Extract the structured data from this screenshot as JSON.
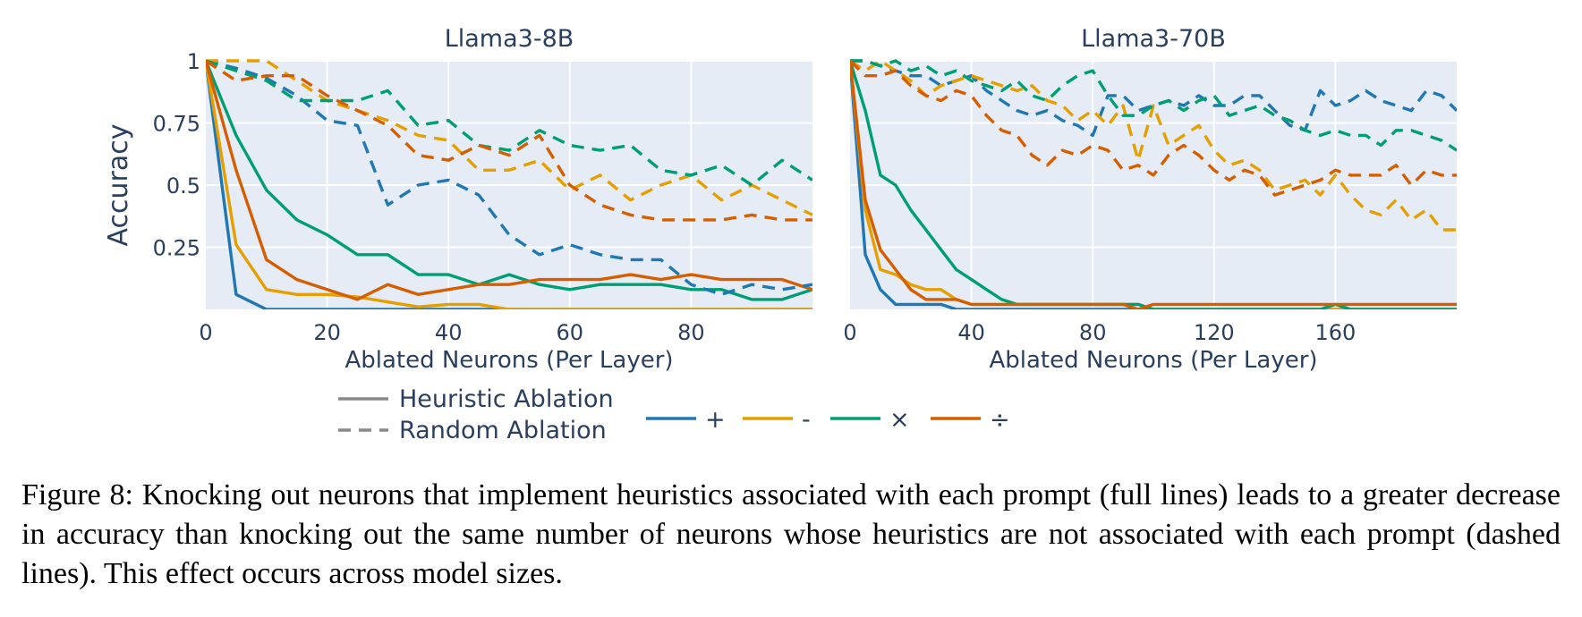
{
  "legend": {
    "styles": [
      {
        "label": "Heuristic Ablation",
        "dash": "solid"
      },
      {
        "label": "Random Ablation",
        "dash": "dashed"
      }
    ],
    "ops": [
      {
        "label": "+",
        "color": "#1f77b4"
      },
      {
        "label": "-",
        "color": "#e69f00"
      },
      {
        "label": "×",
        "color": "#009e73"
      },
      {
        "label": "÷",
        "color": "#d55e00"
      }
    ]
  },
  "caption": "Figure 8: Knocking out neurons that implement heuristics associated with each prompt (full lines) leads to a greater decrease in accuracy than knocking out the same number of neurons whose heuristics are not associated with each prompt (dashed lines). This effect occurs across model sizes.",
  "chart_data": [
    {
      "type": "line",
      "title": "Llama3-8B",
      "xlabel": "Ablated Neurons (Per Layer)",
      "ylabel": "Accuracy",
      "xlim": [
        0,
        100
      ],
      "ylim": [
        0,
        1
      ],
      "xticks": [
        0,
        20,
        40,
        60,
        80
      ],
      "yticks": [
        0.25,
        0.5,
        0.75,
        1
      ],
      "ytick_labels": [
        "0.25",
        "0.5",
        "0.75",
        "1"
      ],
      "x": [
        0,
        5,
        10,
        15,
        20,
        25,
        30,
        35,
        40,
        45,
        50,
        55,
        60,
        65,
        70,
        75,
        80,
        85,
        90,
        95,
        100
      ],
      "series": [
        {
          "op": "+",
          "ablation": "Heuristic Ablation",
          "color": "#1f77b4",
          "dash": "solid",
          "values": [
            1,
            0.06,
            0.0,
            0.0,
            0.0,
            0.0,
            0.0,
            0.0,
            0.0,
            0.0,
            0.0,
            0.0,
            0.0,
            0.0,
            0.0,
            0.0,
            0.0,
            0.0,
            0.0,
            0.0,
            0.0
          ]
        },
        {
          "op": "-",
          "ablation": "Heuristic Ablation",
          "color": "#e69f00",
          "dash": "solid",
          "values": [
            1,
            0.26,
            0.08,
            0.06,
            0.06,
            0.05,
            0.03,
            0.01,
            0.02,
            0.02,
            0.0,
            0.0,
            0.0,
            0.0,
            0.0,
            0.0,
            0.0,
            0.0,
            0.0,
            0.0,
            0.0
          ]
        },
        {
          "op": "×",
          "ablation": "Heuristic Ablation",
          "color": "#009e73",
          "dash": "solid",
          "values": [
            1,
            0.7,
            0.48,
            0.36,
            0.3,
            0.22,
            0.22,
            0.14,
            0.14,
            0.1,
            0.14,
            0.1,
            0.08,
            0.1,
            0.1,
            0.1,
            0.08,
            0.08,
            0.04,
            0.04,
            0.08
          ]
        },
        {
          "op": "÷",
          "ablation": "Heuristic Ablation",
          "color": "#d55e00",
          "dash": "solid",
          "values": [
            1,
            0.56,
            0.2,
            0.12,
            0.08,
            0.04,
            0.1,
            0.06,
            0.08,
            0.1,
            0.1,
            0.12,
            0.12,
            0.12,
            0.14,
            0.12,
            0.14,
            0.12,
            0.12,
            0.12,
            0.08
          ]
        },
        {
          "op": "+",
          "ablation": "Random Ablation",
          "color": "#1f77b4",
          "dash": "dashed",
          "values": [
            1,
            0.97,
            0.93,
            0.86,
            0.76,
            0.74,
            0.42,
            0.5,
            0.52,
            0.46,
            0.3,
            0.22,
            0.26,
            0.22,
            0.2,
            0.2,
            0.1,
            0.06,
            0.1,
            0.08,
            0.1
          ]
        },
        {
          "op": "-",
          "ablation": "Random Ablation",
          "color": "#e69f00",
          "dash": "dashed",
          "values": [
            1,
            1,
            1,
            0.92,
            0.84,
            0.8,
            0.76,
            0.7,
            0.68,
            0.56,
            0.56,
            0.6,
            0.48,
            0.54,
            0.44,
            0.5,
            0.54,
            0.44,
            0.5,
            0.44,
            0.38
          ]
        },
        {
          "op": "×",
          "ablation": "Random Ablation",
          "color": "#009e73",
          "dash": "dashed",
          "values": [
            1,
            0.96,
            0.92,
            0.84,
            0.84,
            0.84,
            0.88,
            0.74,
            0.76,
            0.66,
            0.64,
            0.72,
            0.66,
            0.64,
            0.66,
            0.56,
            0.54,
            0.58,
            0.5,
            0.6,
            0.52
          ]
        },
        {
          "op": "÷",
          "ablation": "Random Ablation",
          "color": "#d55e00",
          "dash": "dashed",
          "values": [
            1,
            0.92,
            0.94,
            0.94,
            0.86,
            0.8,
            0.74,
            0.62,
            0.6,
            0.66,
            0.62,
            0.7,
            0.5,
            0.42,
            0.38,
            0.36,
            0.36,
            0.36,
            0.38,
            0.36,
            0.36
          ]
        }
      ]
    },
    {
      "type": "line",
      "title": "Llama3-70B",
      "xlabel": "Ablated Neurons (Per Layer)",
      "ylabel": "",
      "xlim": [
        0,
        200
      ],
      "ylim": [
        0,
        1
      ],
      "xticks": [
        0,
        40,
        80,
        120,
        160
      ],
      "yticks": [],
      "ytick_labels": [],
      "x": [
        0,
        5,
        10,
        15,
        20,
        25,
        30,
        35,
        40,
        45,
        50,
        55,
        60,
        65,
        70,
        75,
        80,
        85,
        90,
        95,
        100,
        105,
        110,
        115,
        120,
        125,
        130,
        135,
        140,
        145,
        150,
        155,
        160,
        165,
        170,
        175,
        180,
        185,
        190,
        195,
        200
      ],
      "series": [
        {
          "op": "+",
          "ablation": "Heuristic Ablation",
          "color": "#1f77b4",
          "dash": "solid",
          "values": [
            1,
            0.22,
            0.08,
            0.02,
            0.02,
            0.02,
            0.02,
            0.0,
            0.0,
            0.0,
            0.0,
            0.0,
            0.0,
            0.0,
            0.0,
            0.0,
            0.0,
            0.0,
            0.0,
            0.0,
            0.0,
            0.0,
            0.0,
            0.0,
            0.0,
            0.0,
            0.0,
            0.0,
            0.0,
            0.0,
            0.0,
            0.0,
            0.0,
            0.0,
            0.0,
            0.0,
            0.0,
            0.0,
            0.0,
            0.0,
            0.0
          ]
        },
        {
          "op": "-",
          "ablation": "Heuristic Ablation",
          "color": "#e69f00",
          "dash": "solid",
          "values": [
            1,
            0.4,
            0.16,
            0.14,
            0.1,
            0.08,
            0.08,
            0.04,
            0.02,
            0.02,
            0.02,
            0.02,
            0.02,
            0.02,
            0.02,
            0.02,
            0.02,
            0.02,
            0.02,
            0.02,
            0.0,
            0.0,
            0.0,
            0.0,
            0.0,
            0.0,
            0.0,
            0.0,
            0.0,
            0.0,
            0.0,
            0.0,
            0.0,
            0.0,
            0.0,
            0.0,
            0.0,
            0.0,
            0.0,
            0.0,
            0.0
          ]
        },
        {
          "op": "×",
          "ablation": "Heuristic Ablation",
          "color": "#009e73",
          "dash": "solid",
          "values": [
            1,
            0.8,
            0.54,
            0.5,
            0.4,
            0.32,
            0.24,
            0.16,
            0.12,
            0.08,
            0.04,
            0.02,
            0.02,
            0.02,
            0.02,
            0.02,
            0.02,
            0.02,
            0.02,
            0.02,
            0.0,
            0.0,
            0.0,
            0.0,
            0.0,
            0.0,
            0.0,
            0.0,
            0.0,
            0.0,
            0.0,
            0.0,
            0.02,
            0.0,
            0.0,
            0.0,
            0.0,
            0.0,
            0.0,
            0.0,
            0.0
          ]
        },
        {
          "op": "÷",
          "ablation": "Heuristic Ablation",
          "color": "#d55e00",
          "dash": "solid",
          "values": [
            1,
            0.44,
            0.24,
            0.16,
            0.08,
            0.04,
            0.04,
            0.04,
            0.02,
            0.02,
            0.02,
            0.02,
            0.02,
            0.02,
            0.02,
            0.02,
            0.02,
            0.02,
            0.02,
            0.0,
            0.02,
            0.02,
            0.02,
            0.02,
            0.02,
            0.02,
            0.02,
            0.02,
            0.02,
            0.02,
            0.02,
            0.02,
            0.02,
            0.02,
            0.02,
            0.02,
            0.02,
            0.02,
            0.02,
            0.02,
            0.02
          ]
        },
        {
          "op": "+",
          "ablation": "Random Ablation",
          "color": "#1f77b4",
          "dash": "dashed",
          "values": [
            1,
            1,
            0.98,
            0.96,
            0.94,
            0.94,
            0.9,
            0.92,
            0.94,
            0.88,
            0.84,
            0.8,
            0.78,
            0.8,
            0.76,
            0.74,
            0.7,
            0.86,
            0.86,
            0.8,
            0.82,
            0.84,
            0.82,
            0.86,
            0.82,
            0.82,
            0.86,
            0.86,
            0.8,
            0.74,
            0.72,
            0.88,
            0.82,
            0.84,
            0.88,
            0.84,
            0.82,
            0.8,
            0.88,
            0.86,
            0.8
          ]
        },
        {
          "op": "-",
          "ablation": "Random Ablation",
          "color": "#e69f00",
          "dash": "dashed",
          "values": [
            1,
            0.96,
            1.0,
            0.96,
            0.92,
            0.86,
            0.9,
            0.92,
            0.94,
            0.92,
            0.9,
            0.88,
            0.9,
            0.84,
            0.82,
            0.76,
            0.8,
            0.74,
            0.82,
            0.6,
            0.82,
            0.66,
            0.7,
            0.74,
            0.64,
            0.58,
            0.6,
            0.56,
            0.48,
            0.5,
            0.52,
            0.46,
            0.54,
            0.46,
            0.4,
            0.38,
            0.44,
            0.36,
            0.4,
            0.32,
            0.32
          ]
        },
        {
          "op": "×",
          "ablation": "Random Ablation",
          "color": "#009e73",
          "dash": "dashed",
          "values": [
            1,
            1,
            0.98,
            1.0,
            0.96,
            0.98,
            0.94,
            0.96,
            0.92,
            0.9,
            0.88,
            0.92,
            0.86,
            0.84,
            0.9,
            0.94,
            0.96,
            0.86,
            0.78,
            0.78,
            0.82,
            0.84,
            0.8,
            0.84,
            0.86,
            0.78,
            0.8,
            0.82,
            0.78,
            0.76,
            0.72,
            0.7,
            0.72,
            0.7,
            0.7,
            0.66,
            0.72,
            0.72,
            0.7,
            0.68,
            0.64
          ]
        },
        {
          "op": "÷",
          "ablation": "Random Ablation",
          "color": "#d55e00",
          "dash": "dashed",
          "values": [
            1,
            0.94,
            0.94,
            0.96,
            0.9,
            0.86,
            0.84,
            0.88,
            0.86,
            0.78,
            0.72,
            0.7,
            0.62,
            0.58,
            0.64,
            0.62,
            0.66,
            0.64,
            0.56,
            0.58,
            0.54,
            0.62,
            0.66,
            0.62,
            0.56,
            0.52,
            0.56,
            0.54,
            0.46,
            0.48,
            0.5,
            0.52,
            0.56,
            0.54,
            0.54,
            0.54,
            0.58,
            0.5,
            0.56,
            0.54,
            0.54
          ]
        }
      ]
    }
  ]
}
